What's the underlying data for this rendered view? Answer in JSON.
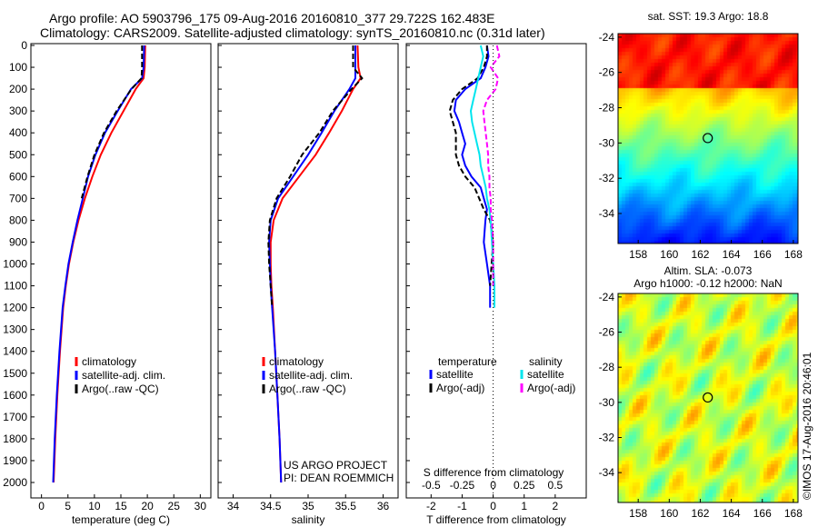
{
  "header": {
    "line1": "Argo profile: AO 5903796_175 09-Aug-2016 20160810_377 29.722S 162.483E",
    "line2": "Climatology: CARS2009. Satellite-adjusted climatology: synTS_20160810.nc (0.31d later)"
  },
  "credit": "US ARGO PROJECT",
  "pi": "PI: DEAN ROEMMICH",
  "watermark": "©IMOS 17-Aug-2016 20:46:01",
  "colors": {
    "climatology": "#ff0000",
    "satellite": "#0000ff",
    "argo": "#000000",
    "sal_satellite": "#00e5ee",
    "sal_argo": "#ff00ff"
  },
  "chart_data": [
    {
      "type": "line",
      "id": "temp",
      "xlabel": "temperature (deg C)",
      "xlim": [
        -2,
        32
      ],
      "ylim": [
        0,
        2000
      ],
      "xticks": [
        0,
        5,
        10,
        15,
        20,
        25,
        30
      ],
      "yticks": [
        0,
        100,
        200,
        300,
        400,
        500,
        600,
        700,
        800,
        900,
        1000,
        1100,
        1200,
        1300,
        1400,
        1500,
        1600,
        1700,
        1800,
        1900,
        2000
      ],
      "legend": [
        "climatology",
        "satellite-adj. clim.",
        "Argo(..raw -QC)"
      ],
      "depth": [
        0,
        100,
        150,
        200,
        300,
        400,
        500,
        600,
        700,
        800,
        900,
        1000,
        1100,
        1200,
        1400,
        1600,
        1800,
        2000
      ],
      "series": [
        {
          "name": "climatology",
          "values": [
            19.6,
            19.5,
            19.3,
            17.8,
            15.5,
            13.2,
            11.2,
            9.6,
            8.2,
            7.0,
            6.0,
            5.2,
            4.6,
            4.1,
            3.5,
            3.0,
            2.6,
            2.3
          ]
        },
        {
          "name": "satellite-adj. clim.",
          "values": [
            19.4,
            19.3,
            19.0,
            16.9,
            14.4,
            12.0,
            10.2,
            8.8,
            7.8,
            6.8,
            5.9,
            5.1,
            4.5,
            4.0,
            3.4,
            2.9,
            2.5,
            2.2
          ]
        },
        {
          "name": "Argo(..raw -QC)",
          "values": [
            19.0,
            19.0,
            18.9,
            17.0,
            14.2,
            11.8,
            10.0,
            8.7,
            7.6,
            null,
            null,
            null,
            null,
            null,
            null,
            null,
            null,
            null
          ]
        }
      ]
    },
    {
      "type": "line",
      "id": "sal",
      "xlabel": "salinity",
      "xlim": [
        33.8,
        36.2
      ],
      "ylim": [
        0,
        2000
      ],
      "xticks": [
        34,
        34.5,
        35,
        35.5,
        36
      ],
      "legend": [
        "climatology",
        "satellite-adj. clim.",
        "Argo(..raw -QC)"
      ],
      "depth": [
        0,
        100,
        150,
        200,
        300,
        400,
        500,
        600,
        700,
        800,
        900,
        1000,
        1100,
        1200,
        1400,
        1600,
        1800,
        2000
      ],
      "series": [
        {
          "name": "climatology",
          "values": [
            35.66,
            35.67,
            35.7,
            35.6,
            35.45,
            35.28,
            35.1,
            34.88,
            34.66,
            34.54,
            34.5,
            34.5,
            34.51,
            34.53,
            34.56,
            34.59,
            34.62,
            34.64
          ]
        },
        {
          "name": "satellite-adj. clim.",
          "values": [
            35.63,
            35.63,
            35.63,
            35.55,
            35.35,
            35.18,
            35.0,
            34.8,
            34.6,
            34.5,
            34.48,
            34.49,
            34.5,
            34.52,
            34.56,
            34.59,
            34.62,
            34.64
          ]
        },
        {
          "name": "Argo(..raw -QC)",
          "values": [
            35.6,
            35.6,
            35.72,
            35.58,
            35.33,
            35.15,
            34.92,
            34.76,
            34.58,
            34.49,
            34.47,
            34.48,
            34.5,
            34.52,
            null,
            null,
            null,
            null
          ]
        }
      ]
    },
    {
      "type": "line",
      "id": "diff",
      "xlabel": "T difference from climatology",
      "x2label": "S difference from climatology",
      "xlim": [
        -2.8,
        3.0
      ],
      "ylim": [
        0,
        2000
      ],
      "xticks": [
        -2,
        -1,
        0,
        1,
        2
      ],
      "x2ticks": [
        "-0.5",
        "-0.25",
        "0",
        "0.25",
        "0.5"
      ],
      "legend_titles": [
        "temperature",
        "salinity"
      ],
      "legend": [
        "satellite",
        "Argo(-adj)",
        "satellite",
        "Argo(-adj)"
      ],
      "depth": [
        0,
        50,
        100,
        150,
        200,
        250,
        300,
        350,
        400,
        450,
        500,
        550,
        600,
        650,
        700,
        750,
        800,
        900,
        1000,
        1100,
        1200
      ],
      "series": [
        {
          "name": "T satellite",
          "values": [
            -0.2,
            -0.15,
            -0.25,
            -0.4,
            -0.9,
            -1.2,
            -1.25,
            -1.1,
            -1.0,
            -0.9,
            -1.0,
            -0.9,
            -0.7,
            -0.4,
            -0.3,
            -0.2,
            -0.25,
            -0.3,
            -0.2,
            -0.1,
            -0.1
          ]
        },
        {
          "name": "T Argo(-adj)",
          "values": [
            -0.2,
            -0.2,
            -0.3,
            -0.5,
            -1.0,
            -1.3,
            -1.4,
            -1.3,
            -1.2,
            -1.2,
            -1.2,
            -1.1,
            -0.9,
            -0.6,
            -0.45,
            -0.3,
            -0.1,
            0.0,
            -0.05,
            -0.1,
            null
          ]
        },
        {
          "name": "S satellite",
          "values": [
            -0.1,
            -0.08,
            -0.1,
            -0.12,
            -0.14,
            -0.16,
            -0.18,
            -0.17,
            -0.15,
            -0.13,
            -0.11,
            -0.1,
            -0.08,
            -0.06,
            -0.05,
            -0.03,
            -0.02,
            -0.01,
            0.0,
            0.01,
            0.01
          ]
        },
        {
          "name": "S Argo(-adj)",
          "values": [
            0.03,
            0.05,
            -0.02,
            0.04,
            0.02,
            -0.05,
            -0.08,
            -0.07,
            -0.06,
            -0.05,
            -0.04,
            -0.04,
            -0.03,
            -0.03,
            -0.02,
            -0.02,
            -0.01,
            0.0,
            0.0,
            0.0,
            null
          ]
        }
      ]
    },
    {
      "type": "heatmap",
      "id": "sst",
      "title": "sat. SST: 19.3 Argo: 18.8",
      "xticks": [
        158,
        160,
        162,
        164,
        166,
        168
      ],
      "yticks": [
        -24,
        -26,
        -28,
        -30,
        -32,
        -34
      ],
      "xlim": [
        156.7,
        168.3
      ],
      "ylim": [
        -35.7,
        -23.8
      ],
      "argo_position": [
        162.483,
        -29.722
      ]
    },
    {
      "type": "heatmap",
      "id": "sla",
      "title": "Altim. SLA: -0.073",
      "subtitle": "Argo h1000: -0.12 h2000: NaN",
      "xticks": [
        158,
        160,
        162,
        164,
        166,
        168
      ],
      "yticks": [
        -24,
        -26,
        -28,
        -30,
        -32,
        -34
      ],
      "xlim": [
        156.7,
        168.3
      ],
      "ylim": [
        -35.7,
        -23.8
      ],
      "argo_position": [
        162.483,
        -29.722
      ]
    }
  ]
}
